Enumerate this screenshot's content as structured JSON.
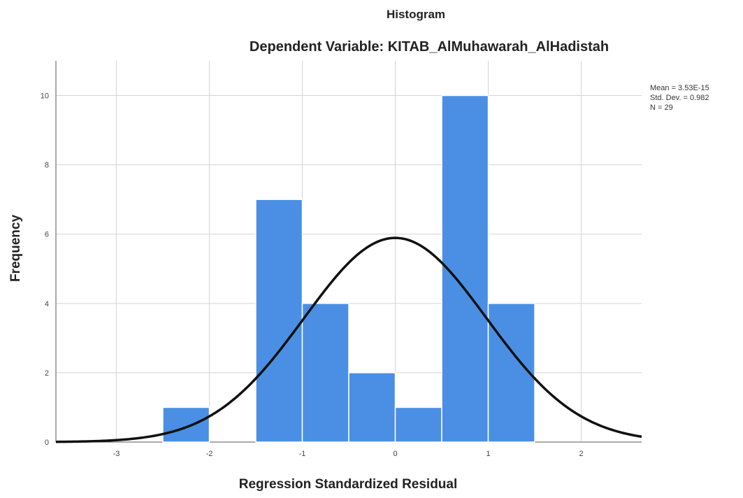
{
  "chart_data": {
    "type": "bar",
    "title": "Histogram",
    "subtitle": "Dependent Variable: KITAB_AlMuhawarah_AlHadistah",
    "xlabel": "Regression Standardized Residual",
    "ylabel": "Frequency",
    "xlim": [
      -3.65,
      2.65
    ],
    "ylim": [
      0,
      11
    ],
    "x_ticks": [
      -3,
      -2,
      -1,
      0,
      1,
      2
    ],
    "y_ticks": [
      0,
      2,
      4,
      6,
      8,
      10
    ],
    "grid": true,
    "bins": [
      {
        "x0": -2.5,
        "x1": -2.0,
        "count": 1
      },
      {
        "x0": -2.0,
        "x1": -1.5,
        "count": 0
      },
      {
        "x0": -1.5,
        "x1": -1.0,
        "count": 7
      },
      {
        "x0": -1.0,
        "x1": -0.5,
        "count": 4
      },
      {
        "x0": -0.5,
        "x1": 0.0,
        "count": 2
      },
      {
        "x0": 0.0,
        "x1": 0.5,
        "count": 1
      },
      {
        "x0": 0.5,
        "x1": 1.0,
        "count": 10
      },
      {
        "x0": 1.0,
        "x1": 1.5,
        "count": 4
      }
    ],
    "normal_curve": {
      "mean": 0,
      "sd": 0.982,
      "n": 29,
      "bin_width": 0.5
    },
    "stats": {
      "mean_label": "Mean = 3.53E-15",
      "sd_label": "Std. Dev. = 0.982",
      "n_label": "N = 29"
    },
    "legend_placement": "top-right",
    "colors": {
      "bar": "#4a8fe3",
      "curve": "#111111",
      "grid": "#d4d4d4"
    }
  }
}
